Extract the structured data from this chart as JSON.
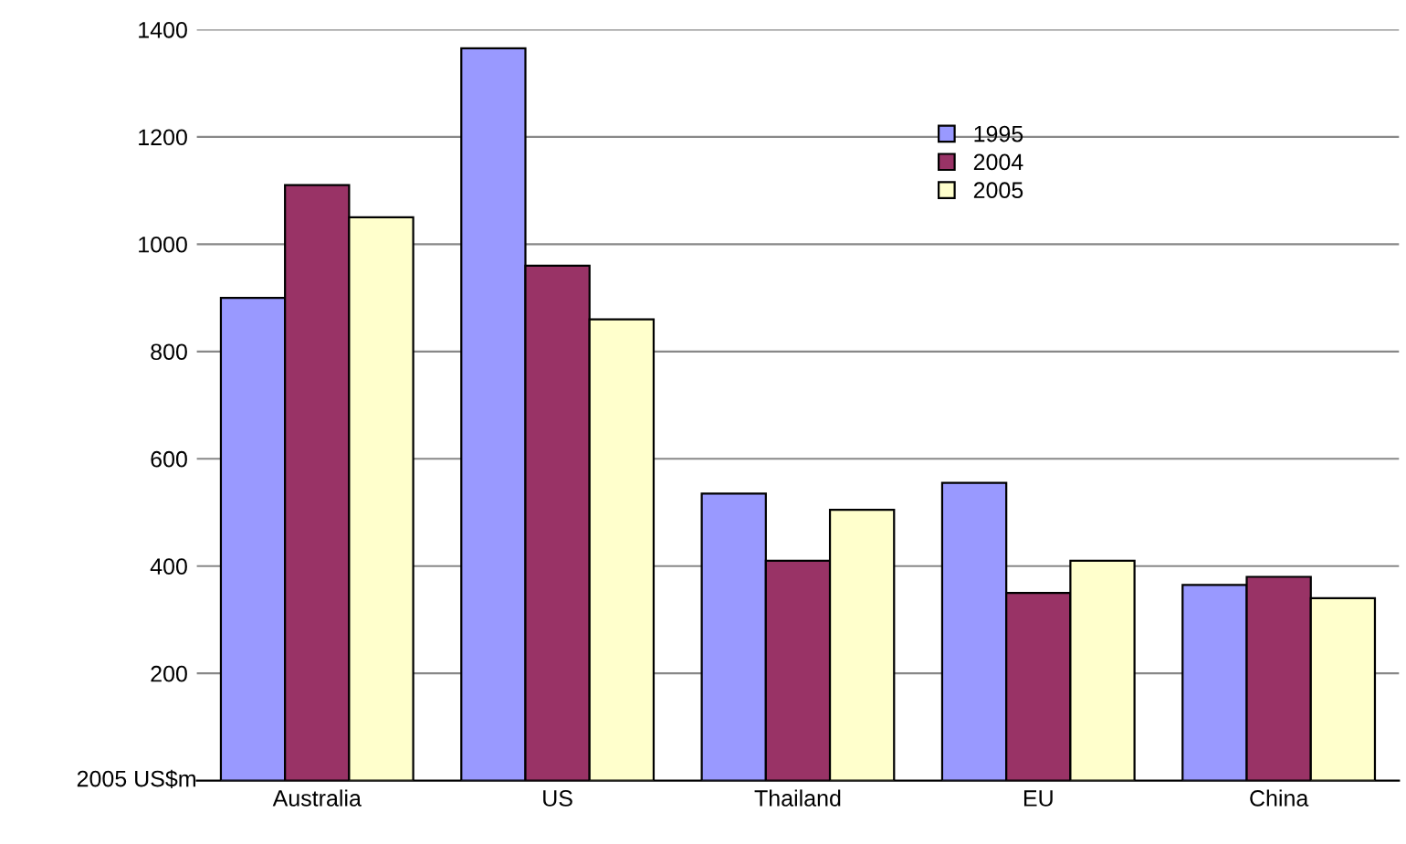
{
  "chart_data": {
    "type": "bar",
    "ylabel": "2005 US$m",
    "categories": [
      "Australia",
      "US",
      "Thailand",
      "EU",
      "China"
    ],
    "series": [
      {
        "name": "1995",
        "color": "#9999ff",
        "values": [
          900,
          1365,
          535,
          555,
          365
        ]
      },
      {
        "name": "2004",
        "color": "#993366",
        "values": [
          1110,
          960,
          410,
          350,
          380
        ]
      },
      {
        "name": "2005",
        "color": "#ffffcc",
        "values": [
          1050,
          860,
          505,
          410,
          340
        ]
      }
    ],
    "ylim": [
      0,
      1400
    ],
    "yticks": [
      200,
      400,
      600,
      800,
      1000,
      1200,
      1400
    ],
    "grid": "y",
    "legend": "top right"
  }
}
